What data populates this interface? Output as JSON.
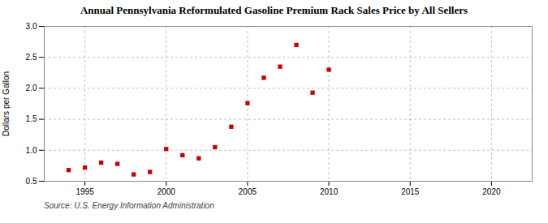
{
  "chart_data": {
    "type": "scatter",
    "title": "Annual Pennsylvania Reformulated Gasoline Premium Rack Sales Price by All Sellers",
    "ylabel": "Dollars per Gallon",
    "source": "Source: U.S. Energy Information Administration",
    "x": [
      1994,
      1995,
      1996,
      1997,
      1998,
      1999,
      2000,
      2001,
      2002,
      2003,
      2004,
      2005,
      2006,
      2007,
      2008,
      2009,
      2010
    ],
    "values": [
      0.68,
      0.72,
      0.8,
      0.78,
      0.61,
      0.65,
      1.02,
      0.92,
      0.87,
      1.05,
      1.38,
      1.76,
      2.17,
      2.35,
      2.7,
      1.93,
      2.3
    ],
    "color": "#cc0000",
    "marker": "square",
    "xlim": [
      1992.5,
      2022.5
    ],
    "xticks": [
      1995,
      2000,
      2005,
      2010,
      2015,
      2020
    ],
    "ylim": [
      0.5,
      3.0
    ],
    "yticks": [
      0.5,
      {
        "value": 1,
        "label": "1.0"
      },
      1.5,
      {
        "value": 2,
        "label": "2.0"
      },
      2.5,
      {
        "value": 3,
        "label": "3.0"
      }
    ],
    "grid": true
  }
}
